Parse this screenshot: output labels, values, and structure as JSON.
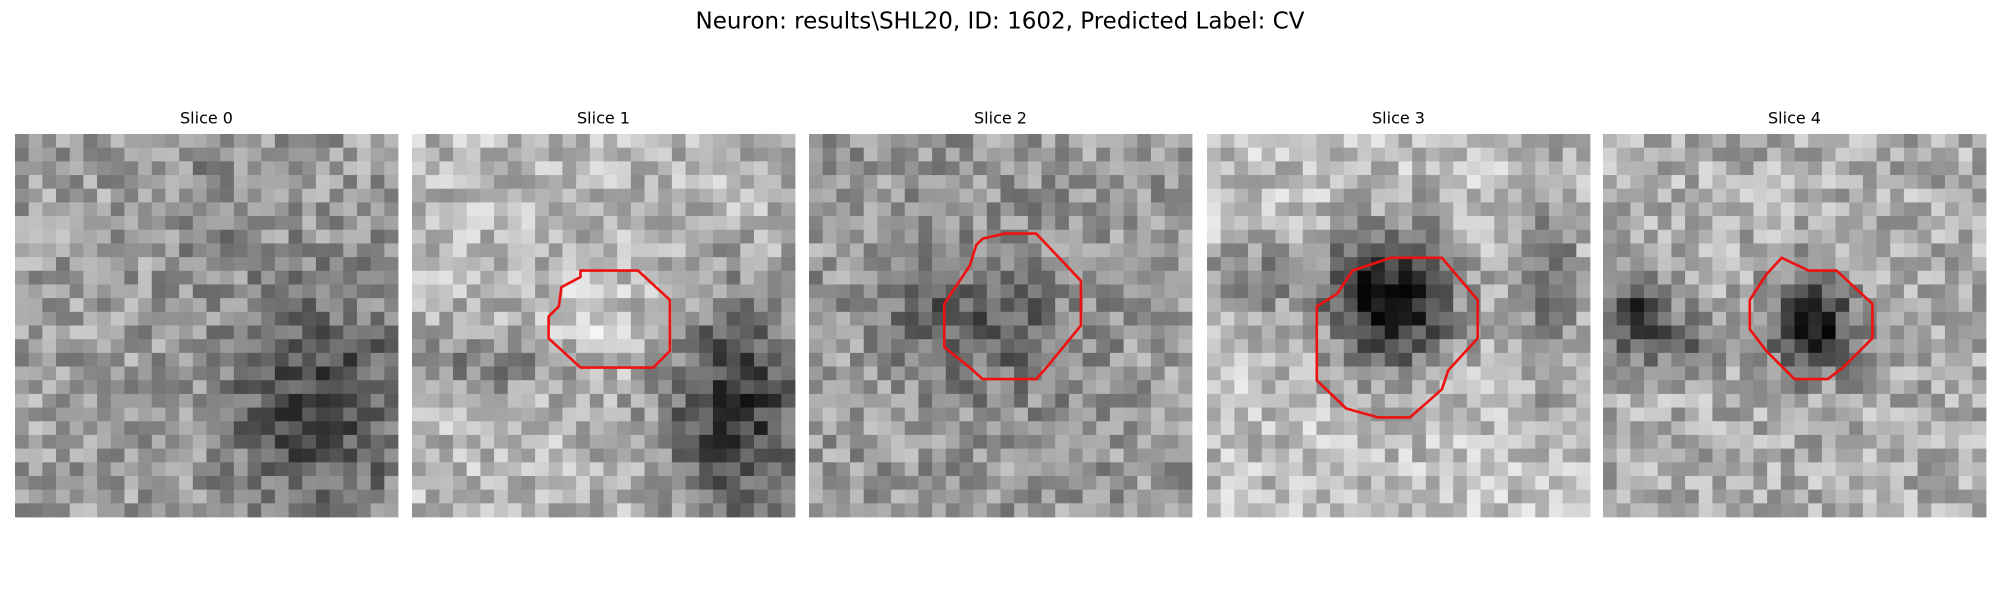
{
  "header": {
    "title": "Neuron: results\\SHL20, ID: 1602, Predicted Label: CV"
  },
  "panels": [
    {
      "title": "Slice 0"
    },
    {
      "title": "Slice 1"
    },
    {
      "title": "Slice 2"
    },
    {
      "title": "Slice 3"
    },
    {
      "title": "Slice 4"
    }
  ]
}
